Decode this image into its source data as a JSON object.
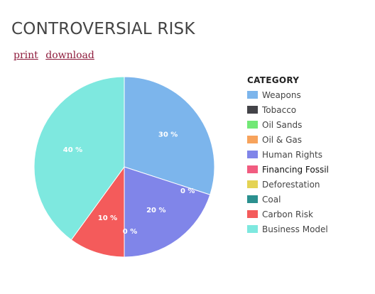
{
  "page": {
    "title": "CONTROVERSIAL RISK",
    "links": {
      "print": "print",
      "download": "download"
    }
  },
  "chart_data": {
    "type": "pie",
    "title": "CONTROVERSIAL RISK",
    "legend_title": "CATEGORY",
    "legend_position": "right",
    "start_angle_deg": 0,
    "direction": "clockwise",
    "slices": [
      {
        "label": "Weapons",
        "value": 30,
        "color": "#7cb5ec",
        "display": "30 %"
      },
      {
        "label": "Tobacco",
        "value": 0,
        "color": "#434348",
        "display": "0 %"
      },
      {
        "label": "Oil Sands",
        "value": 0,
        "color": "#72e876",
        "display": "0 %"
      },
      {
        "label": "Oil & Gas",
        "value": 0,
        "color": "#f7a35c",
        "display": "0 %"
      },
      {
        "label": "Human Rights",
        "value": 20,
        "color": "#8085e9",
        "display": "20 %"
      },
      {
        "label": "Financing Fossil",
        "value": 0,
        "color": "#f15c80",
        "display": "0 %"
      },
      {
        "label": "Deforestation",
        "value": 0,
        "color": "#e4d354",
        "display": "0 %"
      },
      {
        "label": "Coal",
        "value": 0,
        "color": "#2b908f",
        "display": "0 %"
      },
      {
        "label": "Carbon Risk",
        "value": 10,
        "color": "#f45b5b",
        "display": "10 %"
      },
      {
        "label": "Business Model",
        "value": 40,
        "color": "#7ee8df",
        "display": "40 %"
      }
    ],
    "active_legend_item": "Financing Fossil"
  }
}
